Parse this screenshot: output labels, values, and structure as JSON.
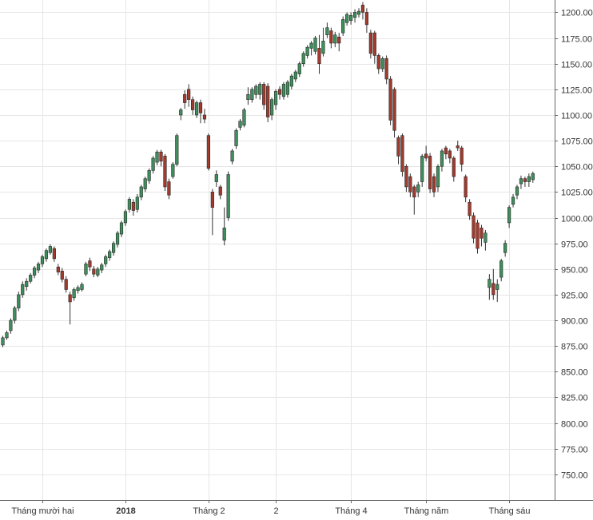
{
  "chart_data": {
    "type": "candlestick",
    "y_ticks": [
      "750.00",
      "775.00",
      "800.00",
      "825.00",
      "850.00",
      "875.00",
      "900.00",
      "925.00",
      "950.00",
      "975.00",
      "1000.00",
      "1025.00",
      "1050.00",
      "1075.00",
      "1100.00",
      "1125.00",
      "1150.00",
      "1175.00",
      "1200.00"
    ],
    "ylim": [
      725,
      1212
    ],
    "y_axis_position": "right",
    "grid": true,
    "x_tick_labels": [
      {
        "label": "Tháng mười hai",
        "index": 10,
        "bold": false
      },
      {
        "label": "2018",
        "index": 31,
        "bold": true
      },
      {
        "label": "Tháng 2",
        "index": 52,
        "bold": false
      },
      {
        "label": "2",
        "index": 69,
        "bold": false
      },
      {
        "label": "Tháng 4",
        "index": 88,
        "bold": false
      },
      {
        "label": "Tháng năm",
        "index": 107,
        "bold": false
      },
      {
        "label": "Tháng sáu",
        "index": 128,
        "bold": false
      }
    ],
    "colors": {
      "up": "#3f8f5d",
      "down": "#a23a2e",
      "wick": "#333333",
      "grid": "#e6e6e6",
      "axis": "#666666"
    },
    "candles": [
      [
        876,
        883,
        874,
        885
      ],
      [
        883,
        888,
        881,
        890
      ],
      [
        890,
        900,
        887,
        902
      ],
      [
        900,
        912,
        897,
        914
      ],
      [
        912,
        925,
        909,
        928
      ],
      [
        925,
        935,
        922,
        938
      ],
      [
        933,
        938,
        929,
        941
      ],
      [
        938,
        944,
        936,
        946
      ],
      [
        944,
        951,
        941,
        953
      ],
      [
        949,
        955,
        946,
        957
      ],
      [
        955,
        962,
        952,
        964
      ],
      [
        960,
        968,
        957,
        970
      ],
      [
        966,
        972,
        964,
        974
      ],
      [
        970,
        960,
        957,
        972
      ],
      [
        952,
        947,
        944,
        955
      ],
      [
        948,
        940,
        937,
        951
      ],
      [
        940,
        930,
        927,
        943
      ],
      [
        925,
        918,
        896,
        928
      ],
      [
        922,
        930,
        919,
        932
      ],
      [
        929,
        932,
        926,
        934
      ],
      [
        930,
        935,
        928,
        937
      ],
      [
        945,
        955,
        943,
        957
      ],
      [
        958,
        952,
        948,
        961
      ],
      [
        950,
        945,
        942,
        953
      ],
      [
        944,
        950,
        942,
        952
      ],
      [
        949,
        954,
        946,
        956
      ],
      [
        955,
        962,
        952,
        964
      ],
      [
        961,
        967,
        958,
        969
      ],
      [
        966,
        975,
        963,
        977
      ],
      [
        974,
        985,
        971,
        987
      ],
      [
        984,
        995,
        981,
        997
      ],
      [
        995,
        1006,
        992,
        1008
      ],
      [
        1008,
        1018,
        1005,
        1020
      ],
      [
        1015,
        1007,
        1002,
        1018
      ],
      [
        1008,
        1020,
        1005,
        1023
      ],
      [
        1020,
        1030,
        1017,
        1032
      ],
      [
        1028,
        1038,
        1025,
        1040
      ],
      [
        1036,
        1046,
        1033,
        1048
      ],
      [
        1046,
        1058,
        1043,
        1060
      ],
      [
        1054,
        1064,
        1051,
        1066
      ],
      [
        1064,
        1055,
        1050,
        1066
      ],
      [
        1060,
        1030,
        1026,
        1062
      ],
      [
        1035,
        1022,
        1018,
        1038
      ],
      [
        1040,
        1052,
        1038,
        1054
      ],
      [
        1052,
        1080,
        1050,
        1082
      ],
      [
        1100,
        1105,
        1095,
        1107
      ],
      [
        1120,
        1112,
        1106,
        1124
      ],
      [
        1125,
        1115,
        1108,
        1130
      ],
      [
        1115,
        1105,
        1100,
        1118
      ],
      [
        1100,
        1112,
        1097,
        1114
      ],
      [
        1112,
        1102,
        1092,
        1115
      ],
      [
        1100,
        1096,
        1092,
        1106
      ],
      [
        1080,
        1048,
        1046,
        1082
      ],
      [
        1025,
        1010,
        983,
        1028
      ],
      [
        1035,
        1042,
        1030,
        1046
      ],
      [
        1030,
        1022,
        1018,
        1032
      ],
      [
        978,
        990,
        973,
        1010
      ],
      [
        1000,
        1042,
        997,
        1045
      ],
      [
        1055,
        1065,
        1052,
        1067
      ],
      [
        1070,
        1085,
        1067,
        1087
      ],
      [
        1088,
        1094,
        1085,
        1096
      ],
      [
        1090,
        1105,
        1088,
        1107
      ],
      [
        1115,
        1120,
        1110,
        1127
      ],
      [
        1115,
        1125,
        1112,
        1127
      ],
      [
        1120,
        1128,
        1116,
        1130
      ],
      [
        1120,
        1130,
        1115,
        1132
      ],
      [
        1130,
        1110,
        1105,
        1132
      ],
      [
        1128,
        1098,
        1093,
        1131
      ],
      [
        1100,
        1115,
        1095,
        1117
      ],
      [
        1110,
        1123,
        1105,
        1125
      ],
      [
        1125,
        1120,
        1115,
        1128
      ],
      [
        1118,
        1130,
        1115,
        1132
      ],
      [
        1120,
        1132,
        1117,
        1134
      ],
      [
        1128,
        1138,
        1125,
        1140
      ],
      [
        1135,
        1142,
        1132,
        1144
      ],
      [
        1140,
        1150,
        1137,
        1152
      ],
      [
        1150,
        1160,
        1147,
        1162
      ],
      [
        1158,
        1166,
        1155,
        1168
      ],
      [
        1165,
        1170,
        1158,
        1172
      ],
      [
        1162,
        1175,
        1159,
        1177
      ],
      [
        1165,
        1150,
        1140,
        1178
      ],
      [
        1160,
        1172,
        1157,
        1185
      ],
      [
        1178,
        1185,
        1175,
        1190
      ],
      [
        1182,
        1170,
        1165,
        1185
      ],
      [
        1170,
        1178,
        1166,
        1181
      ],
      [
        1176,
        1170,
        1162,
        1180
      ],
      [
        1180,
        1193,
        1177,
        1196
      ],
      [
        1190,
        1198,
        1187,
        1200
      ],
      [
        1192,
        1197,
        1188,
        1200
      ],
      [
        1195,
        1200,
        1190,
        1203
      ],
      [
        1198,
        1201,
        1195,
        1204
      ],
      [
        1207,
        1200,
        1193,
        1210
      ],
      [
        1200,
        1188,
        1180,
        1204
      ],
      [
        1180,
        1160,
        1155,
        1183
      ],
      [
        1180,
        1158,
        1150,
        1182
      ],
      [
        1158,
        1145,
        1140,
        1160
      ],
      [
        1145,
        1155,
        1142,
        1157
      ],
      [
        1155,
        1135,
        1130,
        1158
      ],
      [
        1135,
        1095,
        1090,
        1138
      ],
      [
        1125,
        1085,
        1078,
        1127
      ],
      [
        1078,
        1060,
        1052,
        1080
      ],
      [
        1080,
        1045,
        1040,
        1082
      ],
      [
        1050,
        1030,
        1025,
        1052
      ],
      [
        1040,
        1025,
        1020,
        1043
      ],
      [
        1030,
        1020,
        1003,
        1032
      ],
      [
        1025,
        1032,
        1020,
        1035
      ],
      [
        1035,
        1060,
        1030,
        1062
      ],
      [
        1062,
        1058,
        1055,
        1070
      ],
      [
        1060,
        1028,
        1024,
        1063
      ],
      [
        1040,
        1025,
        1020,
        1043
      ],
      [
        1030,
        1050,
        1025,
        1052
      ],
      [
        1050,
        1065,
        1045,
        1067
      ],
      [
        1068,
        1062,
        1057,
        1070
      ],
      [
        1065,
        1058,
        1053,
        1067
      ],
      [
        1058,
        1040,
        1035,
        1060
      ],
      [
        1070,
        1068,
        1065,
        1075
      ],
      [
        1068,
        1052,
        1045,
        1070
      ],
      [
        1040,
        1020,
        1015,
        1042
      ],
      [
        1015,
        1002,
        998,
        1018
      ],
      [
        1002,
        980,
        975,
        1005
      ],
      [
        995,
        970,
        965,
        998
      ],
      [
        990,
        980,
        972,
        993
      ],
      [
        976,
        985,
        968,
        988
      ],
      [
        932,
        940,
        920,
        945
      ],
      [
        936,
        925,
        920,
        950
      ],
      [
        930,
        935,
        918,
        940
      ],
      [
        942,
        958,
        938,
        960
      ],
      [
        966,
        975,
        962,
        978
      ],
      [
        995,
        1010,
        990,
        1012
      ],
      [
        1013,
        1020,
        1010,
        1023
      ],
      [
        1022,
        1030,
        1018,
        1032
      ],
      [
        1033,
        1038,
        1028,
        1041
      ],
      [
        1038,
        1035,
        1030,
        1040
      ],
      [
        1035,
        1040,
        1030,
        1043
      ],
      [
        1037,
        1043,
        1034,
        1045
      ]
    ]
  }
}
